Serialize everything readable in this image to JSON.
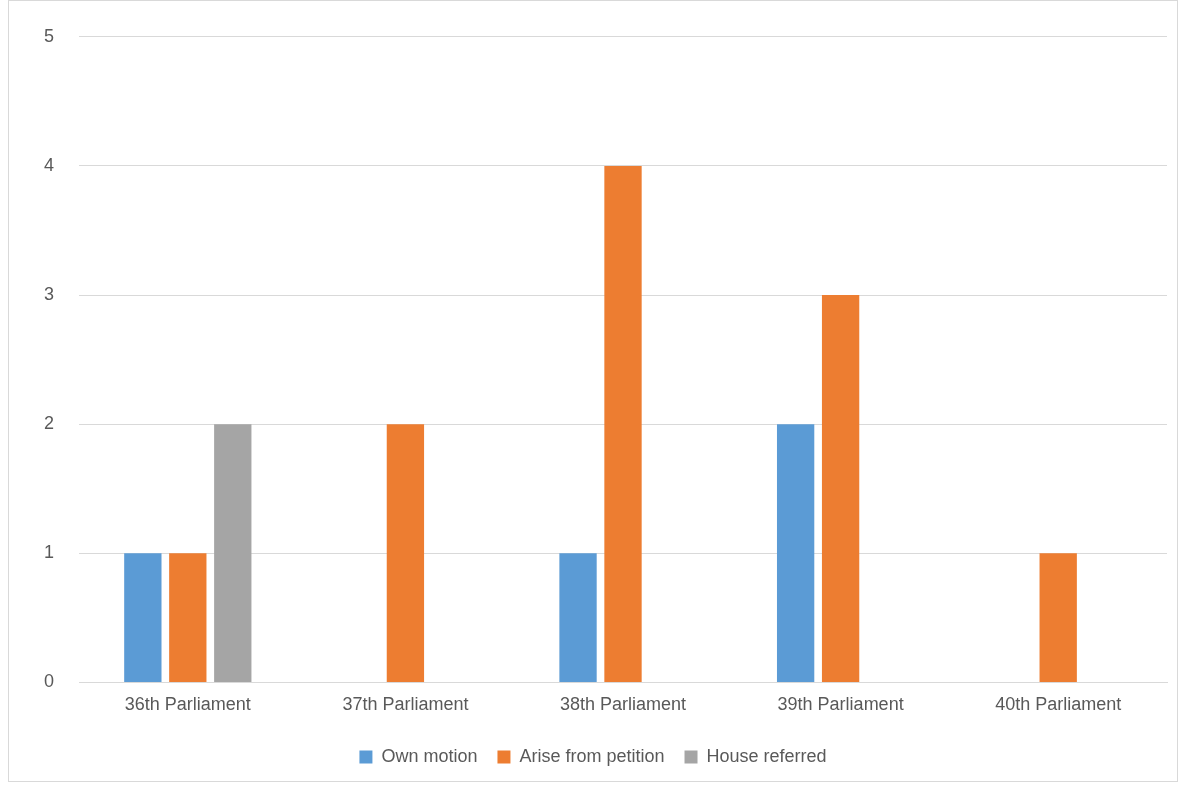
{
  "chart_data": {
    "type": "bar",
    "categories": [
      "36th Parliament",
      "37th Parliament",
      "38th Parliament",
      "39th Parliament",
      "40th Parliament"
    ],
    "series": [
      {
        "name": "Own motion",
        "color": "#5b9bd5",
        "values": [
          1,
          0,
          1,
          2,
          0
        ]
      },
      {
        "name": "Arise from petition",
        "color": "#ed7d31",
        "values": [
          1,
          2,
          4,
          3,
          1
        ]
      },
      {
        "name": "House referred",
        "color": "#a5a5a5",
        "values": [
          2,
          0,
          0,
          0,
          0
        ]
      }
    ],
    "ylim": [
      0,
      5
    ],
    "yticks": [
      0,
      1,
      2,
      3,
      4,
      5
    ],
    "grid": "y",
    "legend": "bottom"
  }
}
